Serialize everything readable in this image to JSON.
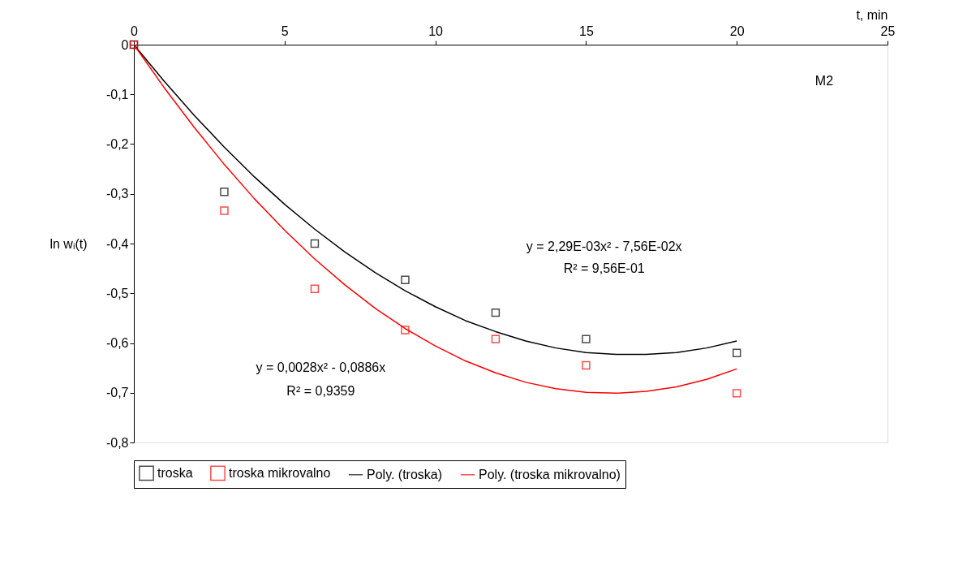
{
  "chart_data": {
    "type": "scatter",
    "xlabel": "t,  min",
    "ylabel": "ln wᵢ(t)",
    "xlim": [
      0,
      25
    ],
    "xticks": [
      0,
      5,
      10,
      15,
      20,
      25
    ],
    "ylim": [
      -0.8,
      0
    ],
    "yticks": [
      0,
      {
        "value": -0.1,
        "label": "-0,1"
      },
      {
        "value": -0.2,
        "label": "-0,2"
      },
      {
        "value": -0.3,
        "label": "-0,3"
      },
      {
        "value": -0.4,
        "label": "-0,4"
      },
      {
        "value": -0.5,
        "label": "-0,5"
      },
      {
        "value": -0.6,
        "label": "-0,6"
      },
      {
        "value": -0.7,
        "label": "-0,7"
      },
      {
        "value": -0.8,
        "label": "-0,8"
      }
    ],
    "grid": false,
    "legend": "bottom",
    "line_style": "solid",
    "series": [
      {
        "name": "troska",
        "marker": "square",
        "color": "#000000",
        "x": [
          0,
          3,
          6,
          9,
          12,
          15,
          20
        ],
        "values": [
          0,
          -0.296,
          -0.4,
          -0.473,
          -0.539,
          -0.592,
          -0.62
        ]
      },
      {
        "name": "troska mikrovalno",
        "marker": "square",
        "color": "#ff0000",
        "x": [
          0,
          3,
          6,
          9,
          12,
          15,
          20
        ],
        "values": [
          0,
          -0.334,
          -0.491,
          -0.574,
          -0.592,
          -0.645,
          -0.701
        ]
      },
      {
        "name": "Poly. (troska)",
        "type": "line",
        "color": "#000000",
        "x": [
          0,
          1,
          2,
          3,
          4,
          5,
          6,
          7,
          8,
          9,
          10,
          11,
          12,
          13,
          14,
          15,
          16,
          17,
          18,
          19,
          20
        ],
        "values": [
          0,
          -0.073,
          -0.142,
          -0.206,
          -0.266,
          -0.321,
          -0.371,
          -0.417,
          -0.458,
          -0.495,
          -0.527,
          -0.555,
          -0.577,
          -0.596,
          -0.61,
          -0.619,
          -0.623,
          -0.623,
          -0.619,
          -0.61,
          -0.596
        ]
      },
      {
        "name": "Poly. (troska mikrovalno)",
        "type": "line",
        "color": "#ff0000",
        "x": [
          0,
          1,
          2,
          3,
          4,
          5,
          6,
          7,
          8,
          9,
          10,
          11,
          12,
          13,
          14,
          15,
          16,
          17,
          18,
          19,
          20
        ],
        "values": [
          0,
          -0.086,
          -0.166,
          -0.241,
          -0.31,
          -0.373,
          -0.431,
          -0.483,
          -0.53,
          -0.571,
          -0.606,
          -0.636,
          -0.66,
          -0.679,
          -0.692,
          -0.699,
          -0.701,
          -0.697,
          -0.688,
          -0.673,
          -0.652
        ]
      }
    ],
    "annotations": [
      "y = 2,29E-03x² - 7,56E-02x",
      "R² = 9,56E-01",
      "y = 0,0028x² - 0,0886x",
      "R² = 0,9359",
      "M2"
    ]
  }
}
